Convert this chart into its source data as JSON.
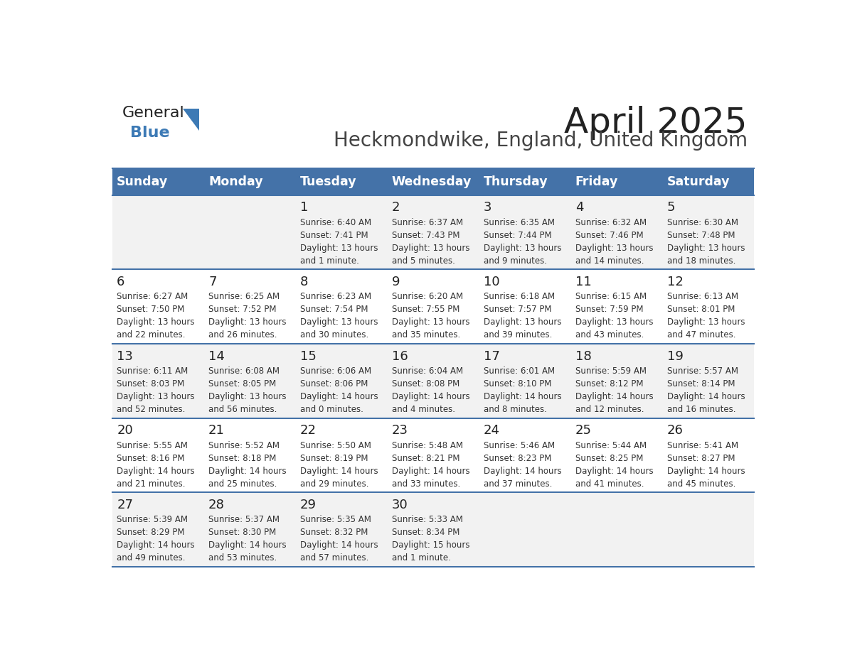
{
  "title": "April 2025",
  "subtitle": "Heckmondwike, England, United Kingdom",
  "days_of_week": [
    "Sunday",
    "Monday",
    "Tuesday",
    "Wednesday",
    "Thursday",
    "Friday",
    "Saturday"
  ],
  "header_bg": "#4472a8",
  "header_text": "#ffffff",
  "row_bg_even": "#f2f2f2",
  "row_bg_odd": "#ffffff",
  "separator_color": "#4472a8",
  "title_color": "#222222",
  "subtitle_color": "#444444",
  "day_number_color": "#222222",
  "cell_text_color": "#333333",
  "calendar_data": [
    [
      {
        "day": null,
        "text": ""
      },
      {
        "day": null,
        "text": ""
      },
      {
        "day": "1",
        "text": "Sunrise: 6:40 AM\nSunset: 7:41 PM\nDaylight: 13 hours\nand 1 minute."
      },
      {
        "day": "2",
        "text": "Sunrise: 6:37 AM\nSunset: 7:43 PM\nDaylight: 13 hours\nand 5 minutes."
      },
      {
        "day": "3",
        "text": "Sunrise: 6:35 AM\nSunset: 7:44 PM\nDaylight: 13 hours\nand 9 minutes."
      },
      {
        "day": "4",
        "text": "Sunrise: 6:32 AM\nSunset: 7:46 PM\nDaylight: 13 hours\nand 14 minutes."
      },
      {
        "day": "5",
        "text": "Sunrise: 6:30 AM\nSunset: 7:48 PM\nDaylight: 13 hours\nand 18 minutes."
      }
    ],
    [
      {
        "day": "6",
        "text": "Sunrise: 6:27 AM\nSunset: 7:50 PM\nDaylight: 13 hours\nand 22 minutes."
      },
      {
        "day": "7",
        "text": "Sunrise: 6:25 AM\nSunset: 7:52 PM\nDaylight: 13 hours\nand 26 minutes."
      },
      {
        "day": "8",
        "text": "Sunrise: 6:23 AM\nSunset: 7:54 PM\nDaylight: 13 hours\nand 30 minutes."
      },
      {
        "day": "9",
        "text": "Sunrise: 6:20 AM\nSunset: 7:55 PM\nDaylight: 13 hours\nand 35 minutes."
      },
      {
        "day": "10",
        "text": "Sunrise: 6:18 AM\nSunset: 7:57 PM\nDaylight: 13 hours\nand 39 minutes."
      },
      {
        "day": "11",
        "text": "Sunrise: 6:15 AM\nSunset: 7:59 PM\nDaylight: 13 hours\nand 43 minutes."
      },
      {
        "day": "12",
        "text": "Sunrise: 6:13 AM\nSunset: 8:01 PM\nDaylight: 13 hours\nand 47 minutes."
      }
    ],
    [
      {
        "day": "13",
        "text": "Sunrise: 6:11 AM\nSunset: 8:03 PM\nDaylight: 13 hours\nand 52 minutes."
      },
      {
        "day": "14",
        "text": "Sunrise: 6:08 AM\nSunset: 8:05 PM\nDaylight: 13 hours\nand 56 minutes."
      },
      {
        "day": "15",
        "text": "Sunrise: 6:06 AM\nSunset: 8:06 PM\nDaylight: 14 hours\nand 0 minutes."
      },
      {
        "day": "16",
        "text": "Sunrise: 6:04 AM\nSunset: 8:08 PM\nDaylight: 14 hours\nand 4 minutes."
      },
      {
        "day": "17",
        "text": "Sunrise: 6:01 AM\nSunset: 8:10 PM\nDaylight: 14 hours\nand 8 minutes."
      },
      {
        "day": "18",
        "text": "Sunrise: 5:59 AM\nSunset: 8:12 PM\nDaylight: 14 hours\nand 12 minutes."
      },
      {
        "day": "19",
        "text": "Sunrise: 5:57 AM\nSunset: 8:14 PM\nDaylight: 14 hours\nand 16 minutes."
      }
    ],
    [
      {
        "day": "20",
        "text": "Sunrise: 5:55 AM\nSunset: 8:16 PM\nDaylight: 14 hours\nand 21 minutes."
      },
      {
        "day": "21",
        "text": "Sunrise: 5:52 AM\nSunset: 8:18 PM\nDaylight: 14 hours\nand 25 minutes."
      },
      {
        "day": "22",
        "text": "Sunrise: 5:50 AM\nSunset: 8:19 PM\nDaylight: 14 hours\nand 29 minutes."
      },
      {
        "day": "23",
        "text": "Sunrise: 5:48 AM\nSunset: 8:21 PM\nDaylight: 14 hours\nand 33 minutes."
      },
      {
        "day": "24",
        "text": "Sunrise: 5:46 AM\nSunset: 8:23 PM\nDaylight: 14 hours\nand 37 minutes."
      },
      {
        "day": "25",
        "text": "Sunrise: 5:44 AM\nSunset: 8:25 PM\nDaylight: 14 hours\nand 41 minutes."
      },
      {
        "day": "26",
        "text": "Sunrise: 5:41 AM\nSunset: 8:27 PM\nDaylight: 14 hours\nand 45 minutes."
      }
    ],
    [
      {
        "day": "27",
        "text": "Sunrise: 5:39 AM\nSunset: 8:29 PM\nDaylight: 14 hours\nand 49 minutes."
      },
      {
        "day": "28",
        "text": "Sunrise: 5:37 AM\nSunset: 8:30 PM\nDaylight: 14 hours\nand 53 minutes."
      },
      {
        "day": "29",
        "text": "Sunrise: 5:35 AM\nSunset: 8:32 PM\nDaylight: 14 hours\nand 57 minutes."
      },
      {
        "day": "30",
        "text": "Sunrise: 5:33 AM\nSunset: 8:34 PM\nDaylight: 15 hours\nand 1 minute."
      },
      {
        "day": null,
        "text": ""
      },
      {
        "day": null,
        "text": ""
      },
      {
        "day": null,
        "text": ""
      }
    ]
  ],
  "logo_text_general": "General",
  "logo_text_blue": "Blue",
  "logo_color_general": "#222222",
  "logo_color_blue": "#3d7ab5",
  "logo_triangle_color": "#3d7ab5"
}
